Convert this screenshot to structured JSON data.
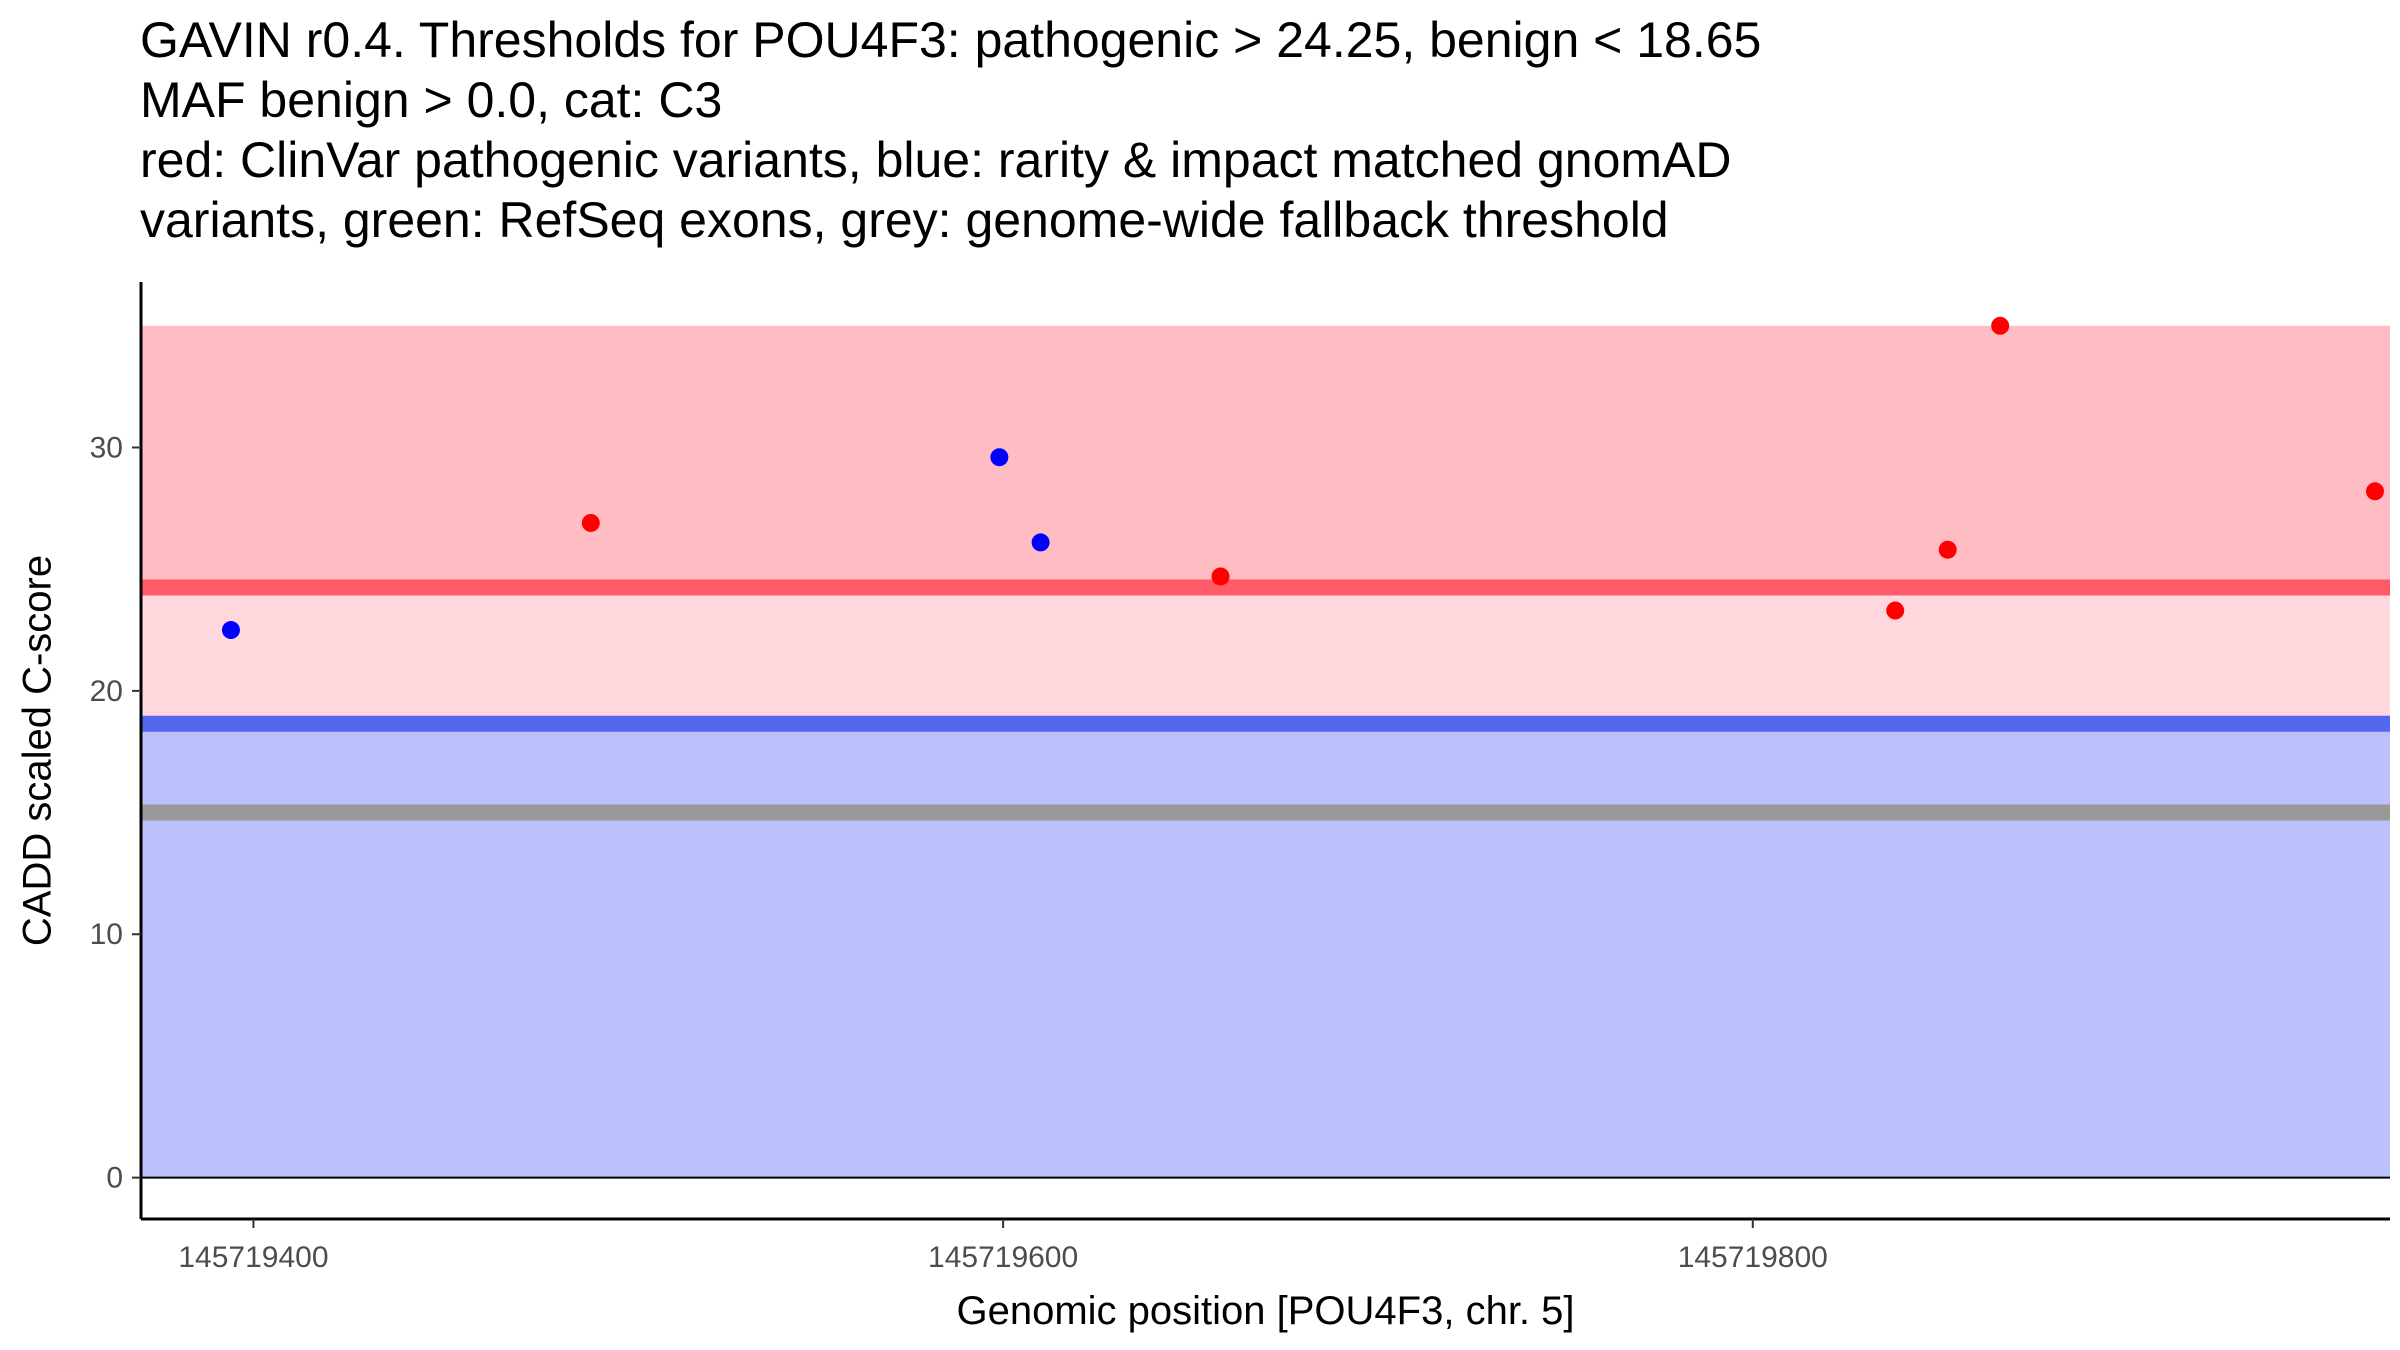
{
  "chart_data": {
    "type": "scatter",
    "title_lines": [
      "GAVIN r0.4. Thresholds for POU4F3: pathogenic > 24.25, benign < 18.65",
      "MAF benign > 0.0, cat: C3",
      "red: ClinVar pathogenic variants, blue: rarity & impact matched gnomAD",
      "variants, green: RefSeq exons, grey: genome-wide fallback threshold"
    ],
    "xlabel": "Genomic position [POU4F3, chr. 5]",
    "ylabel": "CADD scaled C-score",
    "xlim": [
      145719370,
      145719970
    ],
    "ylim": [
      -1.7,
      36.8
    ],
    "x_ticks": [
      145719400,
      145719600,
      145719800
    ],
    "x_tick_labels": [
      "145719400",
      "145719600",
      "145719800"
    ],
    "y_ticks": [
      0,
      10,
      20,
      30
    ],
    "y_tick_labels": [
      "0",
      "10",
      "20",
      "30"
    ],
    "regions": [
      {
        "name": "benign-region",
        "y0": 0,
        "y1": 18.65,
        "color": "#bbc1fa"
      },
      {
        "name": "grey-zone-region",
        "y0": 18.65,
        "y1": 24.25,
        "color": "#ffd7dc"
      },
      {
        "name": "pathogenic-region",
        "y0": 24.25,
        "y1": 35,
        "color": "#ffbcc3"
      }
    ],
    "threshold_lines": [
      {
        "name": "pathogenic-threshold",
        "y": 24.25,
        "color": "#ff5a68"
      },
      {
        "name": "benign-threshold",
        "y": 18.65,
        "color": "#5566ef"
      },
      {
        "name": "fallback-threshold",
        "y": 15.0,
        "color": "#999999"
      }
    ],
    "series": [
      {
        "name": "ClinVar pathogenic variants",
        "color": "#ff0000",
        "x": [
          145719490,
          145719658,
          145719838,
          145719852,
          145719866,
          145719966
        ],
        "y": [
          26.9,
          24.7,
          23.3,
          25.8,
          35.0,
          28.2
        ]
      },
      {
        "name": "rarity & impact matched gnomAD variants",
        "color": "#0000ff",
        "x": [
          145719394,
          145719599,
          145719610
        ],
        "y": [
          22.5,
          29.6,
          26.1
        ]
      }
    ]
  }
}
